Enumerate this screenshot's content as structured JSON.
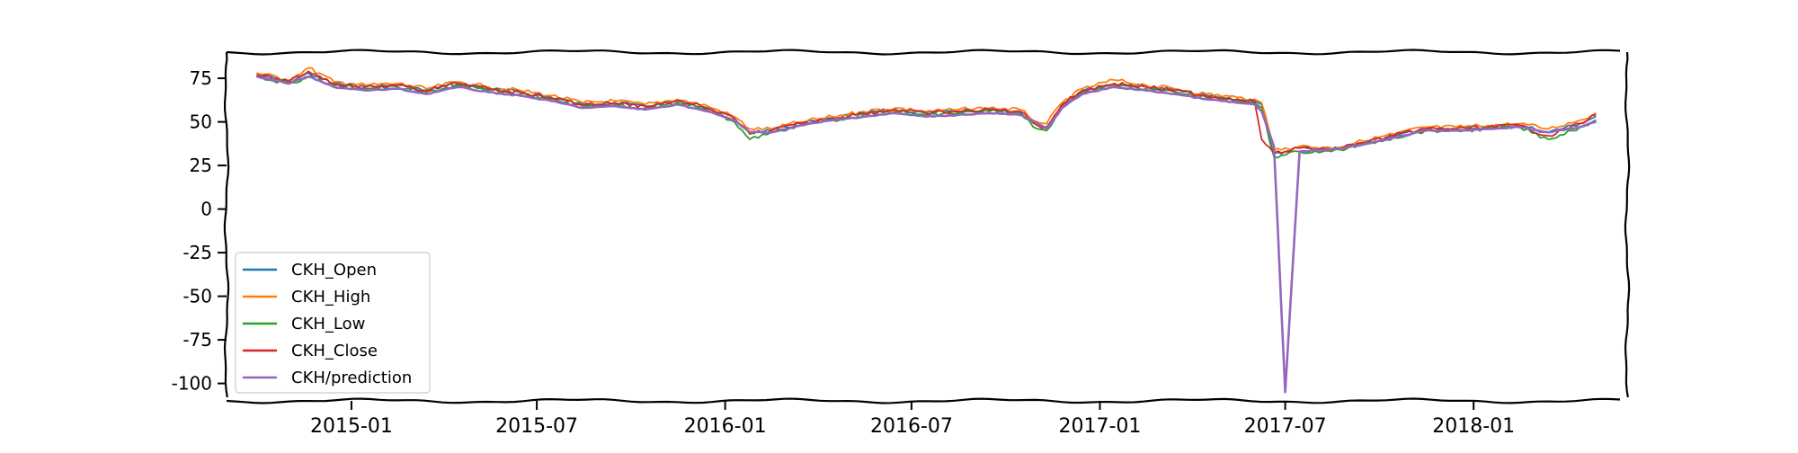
{
  "chart_data": {
    "type": "line",
    "title": "",
    "xlabel": "",
    "ylabel": "",
    "xlim": [
      "2014-09-01",
      "2018-05-31"
    ],
    "ylim": [
      -110,
      90
    ],
    "yticks": [
      75,
      50,
      25,
      0,
      -25,
      -50,
      -75,
      -100
    ],
    "ytick_labels": [
      "75",
      "50",
      "25",
      "0",
      "-25",
      "-50",
      "-75",
      "-100"
    ],
    "xticks": [
      "2015-01-01",
      "2015-07-01",
      "2016-01-01",
      "2016-07-01",
      "2017-01-01",
      "2017-07-01",
      "2018-01-01"
    ],
    "xtick_labels": [
      "2015-01",
      "2015-07",
      "2016-01",
      "2016-07",
      "2017-01",
      "2017-07",
      "2018-01"
    ],
    "grid": false,
    "legend_position": "lower-left",
    "style": "xkcd sketch",
    "colors": {
      "CKH_Open": "#1f77b4",
      "CKH_High": "#ff7f0e",
      "CKH_Low": "#2ca02c",
      "CKH_Close": "#d62728",
      "CKH/prediction": "#9467bd"
    },
    "x": [
      "2014-10-01",
      "2014-11-01",
      "2014-11-20",
      "2014-12-15",
      "2015-01-15",
      "2015-02-15",
      "2015-03-15",
      "2015-04-15",
      "2015-05-15",
      "2015-06-15",
      "2015-07-15",
      "2015-08-15",
      "2015-09-15",
      "2015-10-15",
      "2015-11-15",
      "2015-12-15",
      "2016-01-10",
      "2016-01-25",
      "2016-02-15",
      "2016-03-15",
      "2016-04-15",
      "2016-05-15",
      "2016-06-15",
      "2016-07-15",
      "2016-08-15",
      "2016-09-15",
      "2016-10-15",
      "2016-11-01",
      "2016-11-10",
      "2016-11-25",
      "2016-12-15",
      "2017-01-15",
      "2017-02-15",
      "2017-03-15",
      "2017-04-15",
      "2017-05-15",
      "2017-06-01",
      "2017-06-08",
      "2017-06-20",
      "2017-07-01",
      "2017-07-15",
      "2017-08-15",
      "2017-09-15",
      "2017-10-15",
      "2017-11-15",
      "2017-12-15",
      "2018-01-15",
      "2018-02-15",
      "2018-03-15",
      "2018-04-15",
      "2018-04-30"
    ],
    "series": [
      {
        "name": "CKH_Open",
        "values": [
          77,
          73,
          78,
          72,
          70,
          71,
          68,
          72,
          69,
          67,
          64,
          60,
          61,
          59,
          62,
          58,
          52,
          44,
          45,
          49,
          52,
          55,
          57,
          55,
          56,
          57,
          56,
          48,
          47,
          60,
          68,
          72,
          70,
          68,
          65,
          63,
          62,
          60,
          32,
          33,
          35,
          34,
          38,
          42,
          46,
          46,
          47,
          48,
          44,
          49,
          53
        ]
      },
      {
        "name": "CKH_High",
        "values": [
          78,
          74,
          81,
          73,
          71,
          72,
          69,
          73,
          70,
          68,
          65,
          61,
          62,
          60,
          63,
          59,
          53,
          46,
          46,
          50,
          53,
          56,
          58,
          56,
          57,
          58,
          57,
          50,
          49,
          61,
          69,
          74,
          71,
          69,
          66,
          64,
          63,
          61,
          34,
          35,
          36,
          35,
          39,
          43,
          47,
          47,
          48,
          49,
          46,
          51,
          55
        ]
      },
      {
        "name": "CKH_Low",
        "values": [
          76,
          72,
          76,
          71,
          69,
          70,
          67,
          71,
          68,
          66,
          63,
          59,
          60,
          58,
          61,
          57,
          50,
          40,
          44,
          48,
          51,
          54,
          56,
          54,
          55,
          56,
          55,
          46,
          45,
          59,
          67,
          71,
          69,
          67,
          64,
          62,
          61,
          58,
          30,
          31,
          33,
          33,
          37,
          41,
          45,
          45,
          46,
          47,
          40,
          47,
          51
        ]
      },
      {
        "name": "CKH_Close",
        "values": [
          77,
          73,
          79,
          72,
          70,
          71,
          68,
          72,
          69,
          67,
          64,
          60,
          61,
          59,
          62,
          58,
          52,
          43,
          45,
          49,
          52,
          55,
          57,
          55,
          56,
          57,
          56,
          48,
          47,
          60,
          68,
          72,
          70,
          68,
          65,
          63,
          62,
          40,
          32,
          33,
          35,
          34,
          38,
          42,
          46,
          46,
          47,
          48,
          42,
          49,
          54
        ]
      },
      {
        "name": "CKH/prediction",
        "values": [
          76,
          72,
          76,
          70,
          68,
          69,
          66,
          70,
          67,
          65,
          62,
          58,
          59,
          57,
          60,
          56,
          51,
          44,
          44,
          48,
          51,
          53,
          55,
          53,
          54,
          55,
          54,
          49,
          46,
          58,
          66,
          70,
          68,
          66,
          63,
          61,
          60,
          56,
          36,
          -105,
          33,
          34,
          37,
          41,
          45,
          45,
          46,
          47,
          44,
          47,
          50
        ]
      }
    ]
  }
}
